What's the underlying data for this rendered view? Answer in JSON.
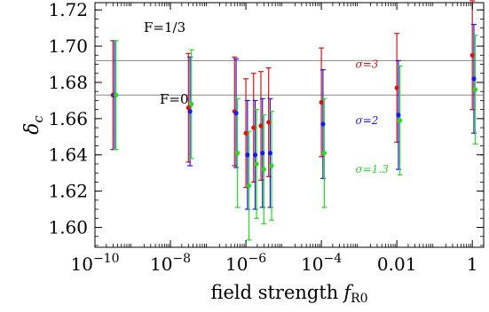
{
  "chart_data": {
    "type": "scatter",
    "title": "",
    "xlabel": "field strength",
    "xlabel_symbol": "f",
    "xlabel_subscript": "R0",
    "ylabel_symbol": "δ",
    "ylabel_subscript": "c",
    "x_scale": "log10",
    "xlim": [
      1e-10,
      2.0
    ],
    "ylim": [
      1.589,
      1.724
    ],
    "grid": false,
    "legend": "none",
    "x_ticks": [
      {
        "value": 1e-10,
        "base": "10",
        "exp": "−10"
      },
      {
        "value": 1e-08,
        "base": "10",
        "exp": "−8"
      },
      {
        "value": 1e-06,
        "base": "10",
        "exp": "−6"
      },
      {
        "value": 0.0001,
        "base": "10",
        "exp": "−4"
      },
      {
        "value": 0.01,
        "base": "0.01",
        "exp": ""
      },
      {
        "value": 1,
        "base": "1",
        "exp": ""
      }
    ],
    "y_ticks": [
      {
        "value": 1.6,
        "label": "1.60"
      },
      {
        "value": 1.62,
        "label": "1.62"
      },
      {
        "value": 1.64,
        "label": "1.64"
      },
      {
        "value": 1.66,
        "label": "1.66"
      },
      {
        "value": 1.68,
        "label": "1.68"
      },
      {
        "value": 1.7,
        "label": "1.70"
      },
      {
        "value": 1.72,
        "label": "1.72"
      }
    ],
    "reference_lines": [
      {
        "label": "F=1/3",
        "y": 1.692
      },
      {
        "label": "F=0",
        "y": 1.673
      }
    ],
    "series": [
      {
        "name": "σ=3",
        "color": "#dd1111",
        "points": [
          {
            "x": 3e-10,
            "y": 1.673,
            "err": 0.03
          },
          {
            "x": 3e-08,
            "y": 1.666,
            "err": 0.03
          },
          {
            "x": 5e-07,
            "y": 1.664,
            "err": 0.03
          },
          {
            "x": 1e-06,
            "y": 1.652,
            "err": 0.03
          },
          {
            "x": 1.6e-06,
            "y": 1.655,
            "err": 0.03
          },
          {
            "x": 2.5e-06,
            "y": 1.656,
            "err": 0.03
          },
          {
            "x": 4e-06,
            "y": 1.658,
            "err": 0.03
          },
          {
            "x": 0.0001,
            "y": 1.669,
            "err": 0.03
          },
          {
            "x": 0.01,
            "y": 1.677,
            "err": 0.03
          },
          {
            "x": 1,
            "y": 1.695,
            "err": 0.03
          }
        ],
        "label_x": 0.0008,
        "label_y": 1.688
      },
      {
        "name": "σ=2",
        "color": "#1a1aee",
        "points": [
          {
            "x": 3.3e-10,
            "y": 1.673,
            "err": 0.03
          },
          {
            "x": 3.3e-08,
            "y": 1.664,
            "err": 0.03
          },
          {
            "x": 5.5e-07,
            "y": 1.663,
            "err": 0.03
          },
          {
            "x": 1.1e-06,
            "y": 1.64,
            "err": 0.03
          },
          {
            "x": 1.76e-06,
            "y": 1.64,
            "err": 0.03
          },
          {
            "x": 2.75e-06,
            "y": 1.641,
            "err": 0.03
          },
          {
            "x": 4.4e-06,
            "y": 1.641,
            "err": 0.03
          },
          {
            "x": 0.00011,
            "y": 1.657,
            "err": 0.03
          },
          {
            "x": 0.011,
            "y": 1.662,
            "err": 0.03
          },
          {
            "x": 1.1,
            "y": 1.682,
            "err": 0.03
          }
        ],
        "label_x": 0.0008,
        "label_y": 1.657
      },
      {
        "name": "σ=1.3",
        "color": "#22dd22",
        "points": [
          {
            "x": 3.6e-10,
            "y": 1.673,
            "err": 0.03
          },
          {
            "x": 3.6e-08,
            "y": 1.668,
            "err": 0.03
          },
          {
            "x": 6e-07,
            "y": 1.641,
            "err": 0.03
          },
          {
            "x": 1.2e-06,
            "y": 1.623,
            "err": 0.03
          },
          {
            "x": 1.92e-06,
            "y": 1.635,
            "err": 0.03
          },
          {
            "x": 3e-06,
            "y": 1.632,
            "err": 0.03
          },
          {
            "x": 4.8e-06,
            "y": 1.634,
            "err": 0.03
          },
          {
            "x": 0.00012,
            "y": 1.641,
            "err": 0.03
          },
          {
            "x": 0.012,
            "y": 1.659,
            "err": 0.03
          },
          {
            "x": 1.2,
            "y": 1.676,
            "err": 0.03
          }
        ],
        "label_x": 0.0008,
        "label_y": 1.63
      }
    ]
  }
}
